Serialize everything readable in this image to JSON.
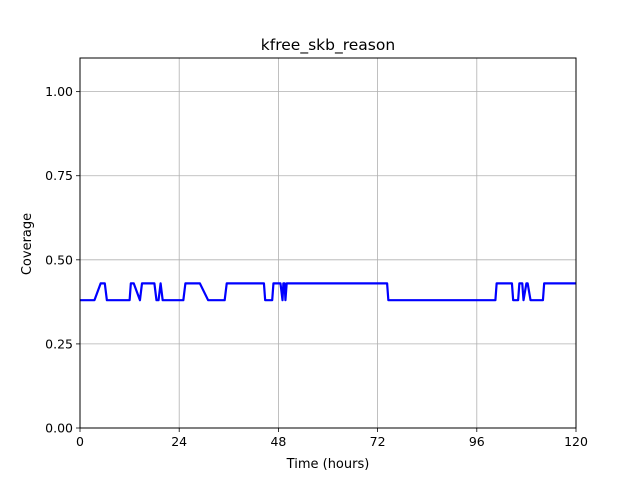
{
  "chart_data": {
    "type": "line",
    "title": "kfree_skb_reason",
    "xlabel": "Time (hours)",
    "ylabel": "Coverage",
    "xlim": [
      0,
      120
    ],
    "ylim": [
      0,
      1.1
    ],
    "xticks": [
      0,
      24,
      48,
      72,
      96,
      120
    ],
    "xtick_labels": [
      "0",
      "24",
      "48",
      "72",
      "96",
      "120"
    ],
    "yticks": [
      0,
      0.25,
      0.5,
      0.75,
      1.0
    ],
    "ytick_labels": [
      "0.00",
      "0.25",
      "0.50",
      "0.75",
      "1.00"
    ],
    "grid": true,
    "legend": "none",
    "series": [
      {
        "color": "#0000ff",
        "x": [
          0,
          3.5,
          5,
          6,
          6.5,
          12,
          12.3,
          13,
          14.5,
          15,
          18,
          18.5,
          19,
          19.5,
          20,
          25,
          25.5,
          29,
          31,
          35,
          35.5,
          44.5,
          44.8,
          46.5,
          46.8,
          48.5,
          49,
          49.2,
          49.5,
          49.7,
          50,
          50.3,
          74.3,
          74.6,
          100.5,
          100.8,
          104.5,
          104.8,
          106,
          106.3,
          107,
          107.3,
          108,
          108.3,
          109,
          109.3,
          112,
          112.3,
          120
        ],
        "y": [
          0.38,
          0.38,
          0.43,
          0.43,
          0.38,
          0.38,
          0.43,
          0.43,
          0.38,
          0.43,
          0.43,
          0.38,
          0.38,
          0.43,
          0.38,
          0.38,
          0.43,
          0.43,
          0.38,
          0.38,
          0.43,
          0.43,
          0.38,
          0.38,
          0.43,
          0.43,
          0.38,
          0.43,
          0.43,
          0.38,
          0.43,
          0.43,
          0.43,
          0.38,
          0.38,
          0.43,
          0.43,
          0.38,
          0.38,
          0.43,
          0.43,
          0.38,
          0.43,
          0.43,
          0.38,
          0.38,
          0.38,
          0.43,
          0.43
        ]
      }
    ]
  }
}
